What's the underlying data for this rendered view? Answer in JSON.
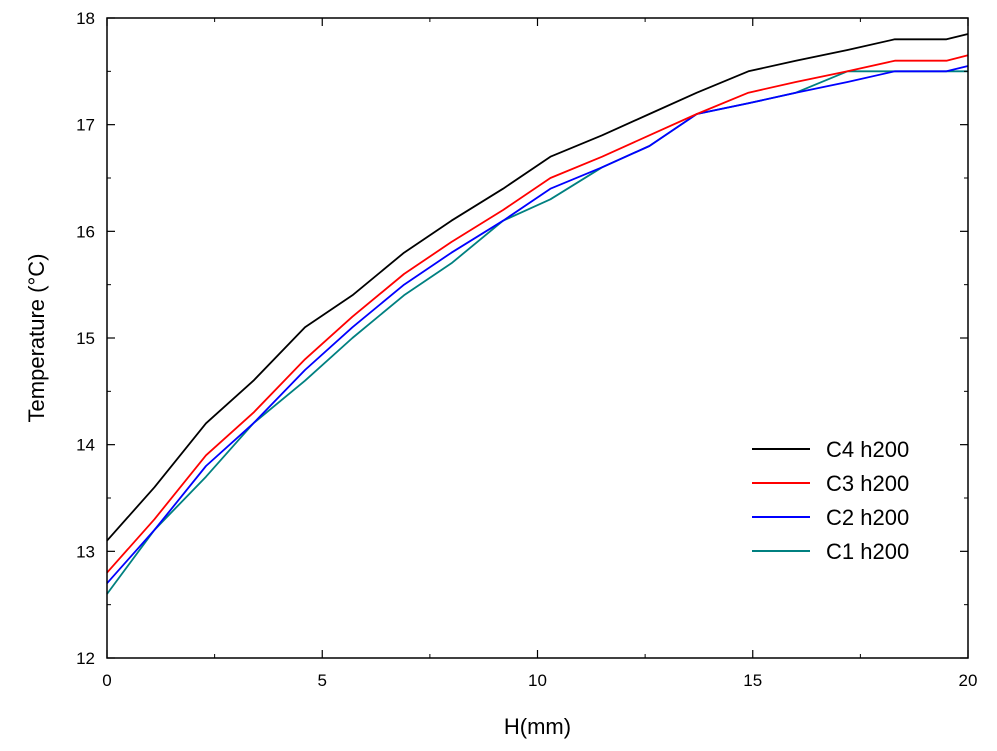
{
  "chart_data": {
    "type": "line",
    "xlabel": "H(mm)",
    "ylabel": "Temperature (°C)",
    "xlim": [
      0,
      20
    ],
    "ylim": [
      12,
      18
    ],
    "x_ticks": [
      0,
      5,
      10,
      15,
      20
    ],
    "y_ticks": [
      12,
      13,
      14,
      15,
      16,
      17,
      18
    ],
    "grid": false,
    "legend_position": "lower-right",
    "series": [
      {
        "name": "C4 h200",
        "color": "#000000",
        "x": [
          0,
          1.1,
          2.3,
          3.4,
          4.6,
          5.7,
          6.9,
          8.0,
          9.2,
          10.3,
          11.5,
          12.6,
          13.7,
          14.9,
          16.0,
          17.2,
          18.3,
          19.5,
          20.0
        ],
        "y": [
          13.1,
          13.6,
          14.2,
          14.6,
          15.1,
          15.4,
          15.8,
          16.1,
          16.4,
          16.7,
          16.9,
          17.1,
          17.3,
          17.5,
          17.6,
          17.7,
          17.8,
          17.8,
          17.85
        ]
      },
      {
        "name": "C3 h200",
        "color": "#ff0000",
        "x": [
          0,
          1.1,
          2.3,
          3.4,
          4.6,
          5.7,
          6.9,
          8.0,
          9.2,
          10.3,
          11.5,
          12.6,
          13.7,
          14.9,
          16.0,
          17.2,
          18.3,
          19.5,
          20.0
        ],
        "y": [
          12.8,
          13.3,
          13.9,
          14.3,
          14.8,
          15.2,
          15.6,
          15.9,
          16.2,
          16.5,
          16.7,
          16.9,
          17.1,
          17.3,
          17.4,
          17.5,
          17.6,
          17.6,
          17.65
        ]
      },
      {
        "name": "C2 h200",
        "color": "#0000ff",
        "x": [
          0,
          1.1,
          2.3,
          3.4,
          4.6,
          5.7,
          6.9,
          8.0,
          9.2,
          10.3,
          11.5,
          12.6,
          13.7,
          14.9,
          16.0,
          17.2,
          18.3,
          19.5,
          20.0
        ],
        "y": [
          12.7,
          13.2,
          13.8,
          14.2,
          14.7,
          15.1,
          15.5,
          15.8,
          16.1,
          16.4,
          16.6,
          16.8,
          17.1,
          17.2,
          17.3,
          17.4,
          17.5,
          17.5,
          17.55
        ]
      },
      {
        "name": "C1 h200",
        "color": "#008080",
        "x": [
          0,
          1.1,
          2.3,
          3.4,
          4.6,
          5.7,
          6.9,
          8.0,
          9.2,
          10.3,
          11.5,
          12.6,
          13.7,
          14.9,
          16.0,
          17.2,
          18.3,
          19.5,
          20.0
        ],
        "y": [
          12.6,
          13.2,
          13.7,
          14.2,
          14.6,
          15.0,
          15.4,
          15.7,
          16.1,
          16.3,
          16.6,
          16.8,
          17.1,
          17.2,
          17.3,
          17.5,
          17.5,
          17.5,
          17.5
        ]
      }
    ]
  }
}
